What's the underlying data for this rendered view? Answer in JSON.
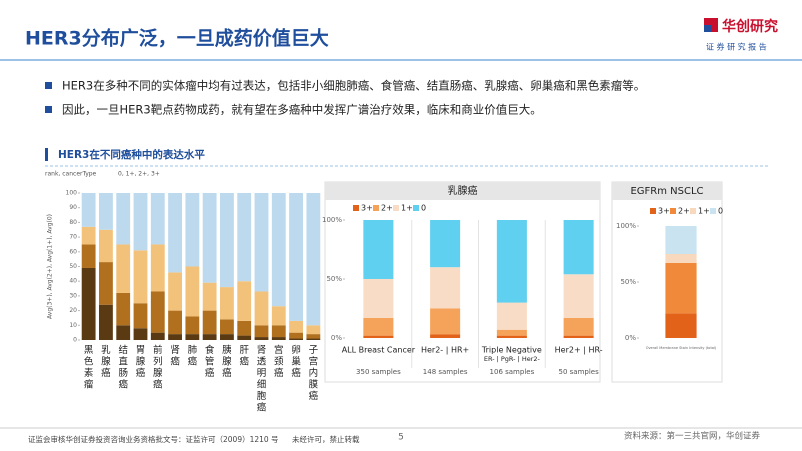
{
  "header": {
    "title": "HER3分布广泛，一旦成药价值巨大",
    "logo": "华创研究",
    "logo_sub": "证 券 研 究 报 告"
  },
  "bullets": [
    "HER3在多种不同的实体瘤中均有过表达，包括非小细胞肺癌、食管癌、结直肠癌、乳腺癌、卵巢癌和黑色素瘤等。",
    "因此，一旦HER3靶点药物成药，就有望在多癌种中发挥广谱治疗效果，临床和商业价值巨大。"
  ],
  "section_title": "HER3在不同癌种中的表达水平",
  "chart_data": [
    {
      "type": "stacked-bar",
      "header_left": "rank, cancerType",
      "header_right": "0, 1+, 2+, 3+",
      "y_label": "Avg(3+), Avg(2+), Avg(1+), Avg(0)",
      "categories": [
        "黑色素瘤",
        "乳腺癌",
        "结直肠癌",
        "胃腺癌",
        "前列腺癌",
        "肾癌",
        "肺癌",
        "食管癌",
        "胰腺癌",
        "肝癌",
        "肾透明细胞癌",
        "宫颈癌",
        "卵巢癌",
        "子宫内膜癌"
      ],
      "series": [
        {
          "name": "3+",
          "color": "#5a3a12",
          "values": [
            49,
            24,
            10,
            8,
            5,
            4,
            4,
            4,
            4,
            3,
            2,
            2,
            1,
            1
          ]
        },
        {
          "name": "2+",
          "color": "#b0701e",
          "values": [
            16,
            29,
            22,
            17,
            28,
            16,
            12,
            16,
            10,
            10,
            8,
            8,
            4,
            3
          ]
        },
        {
          "name": "1+",
          "color": "#f2c27a",
          "values": [
            12,
            22,
            33,
            36,
            32,
            26,
            34,
            19,
            22,
            27,
            23,
            13,
            8,
            6
          ]
        },
        {
          "name": "0",
          "color": "#bcd9ee",
          "values": [
            23,
            25,
            35,
            39,
            35,
            54,
            50,
            61,
            64,
            60,
            67,
            77,
            87,
            90
          ]
        }
      ],
      "ylim": [
        0,
        100
      ],
      "yticks": [
        0,
        10,
        20,
        30,
        40,
        50,
        60,
        70,
        80,
        90,
        100
      ]
    },
    {
      "type": "stacked-bar",
      "title": "乳腺癌",
      "categories": [
        "ALL Breast Cancer",
        "Her2- | HR+",
        "Triple Negative",
        "Her2+ | HR-"
      ],
      "category_sublabels": [
        null,
        null,
        "ER- | PgR- | Her2-",
        null
      ],
      "sample_labels": [
        "350 samples",
        "148 samples",
        "106 samples",
        "50 samples"
      ],
      "series": [
        {
          "name": "3+",
          "color": "#e2621a",
          "values": [
            2,
            3,
            2,
            2
          ]
        },
        {
          "name": "2+",
          "color": "#f5a25a",
          "values": [
            15,
            22,
            5,
            15
          ]
        },
        {
          "name": "1+",
          "color": "#f9dcc5",
          "values": [
            33,
            35,
            23,
            37
          ]
        },
        {
          "name": "0",
          "color": "#5fd0ef",
          "values": [
            50,
            40,
            70,
            46
          ]
        }
      ],
      "ylim": [
        0,
        100
      ],
      "yticks": [
        {
          "value": 0,
          "label": "0%"
        },
        {
          "value": 50,
          "label": "50%"
        },
        {
          "value": 100,
          "label": "100%"
        }
      ]
    },
    {
      "type": "stacked-bar",
      "title": "EGFRm NSCLC",
      "categories": [
        "Overall Membrane Stain Intensity (total)"
      ],
      "series": [
        {
          "name": "3+",
          "color": "#e2621a",
          "values": [
            22
          ]
        },
        {
          "name": "2+",
          "color": "#f08a3a",
          "values": [
            45
          ]
        },
        {
          "name": "1+",
          "color": "#f9d9bd",
          "values": [
            8
          ]
        },
        {
          "name": "0",
          "color": "#c9e4f0",
          "values": [
            25
          ]
        }
      ],
      "ylim": [
        0,
        100
      ],
      "yticks": [
        {
          "value": 0,
          "label": "0%"
        },
        {
          "value": 50,
          "label": "50%"
        },
        {
          "value": 100,
          "label": "100%"
        }
      ]
    }
  ],
  "footer": {
    "license": "证监会审核华创证券投资咨询业务资格批文号：证监许可（2009）1210 号",
    "notice": "未经许可，禁止转载",
    "page": "5",
    "source": "资料来源：第一三共官网，华创证券"
  }
}
